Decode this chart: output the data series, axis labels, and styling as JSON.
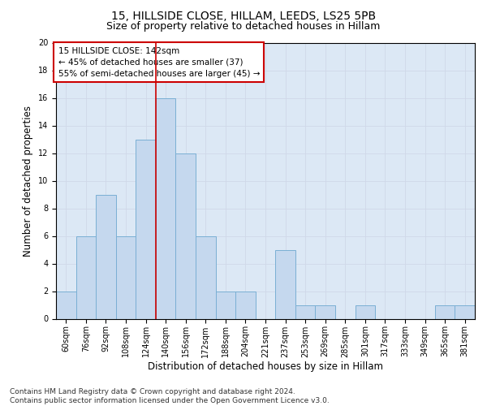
{
  "title1": "15, HILLSIDE CLOSE, HILLAM, LEEDS, LS25 5PB",
  "title2": "Size of property relative to detached houses in Hillam",
  "xlabel": "Distribution of detached houses by size in Hillam",
  "ylabel": "Number of detached properties",
  "bar_labels": [
    "60sqm",
    "76sqm",
    "92sqm",
    "108sqm",
    "124sqm",
    "140sqm",
    "156sqm",
    "172sqm",
    "188sqm",
    "204sqm",
    "221sqm",
    "237sqm",
    "253sqm",
    "269sqm",
    "285sqm",
    "301sqm",
    "317sqm",
    "333sqm",
    "349sqm",
    "365sqm",
    "381sqm"
  ],
  "bar_values": [
    2,
    6,
    9,
    6,
    13,
    16,
    12,
    6,
    2,
    2,
    0,
    5,
    1,
    1,
    0,
    1,
    0,
    0,
    0,
    1,
    1
  ],
  "bar_color": "#c5d8ee",
  "bar_edge_color": "#7aafd4",
  "vline_color": "#cc0000",
  "annotation_line1": "15 HILLSIDE CLOSE: 142sqm",
  "annotation_line2": "← 45% of detached houses are smaller (37)",
  "annotation_line3": "55% of semi-detached houses are larger (45) →",
  "annotation_box_color": "#ffffff",
  "annotation_box_edge": "#cc0000",
  "ylim": [
    0,
    20
  ],
  "yticks": [
    0,
    2,
    4,
    6,
    8,
    10,
    12,
    14,
    16,
    18,
    20
  ],
  "grid_color": "#d0d8e8",
  "bg_color": "#dce8f5",
  "footer": "Contains HM Land Registry data © Crown copyright and database right 2024.\nContains public sector information licensed under the Open Government Licence v3.0.",
  "title1_fontsize": 10,
  "title2_fontsize": 9,
  "xlabel_fontsize": 8.5,
  "ylabel_fontsize": 8.5,
  "tick_fontsize": 7,
  "footer_fontsize": 6.5,
  "annot_fontsize": 7.5
}
